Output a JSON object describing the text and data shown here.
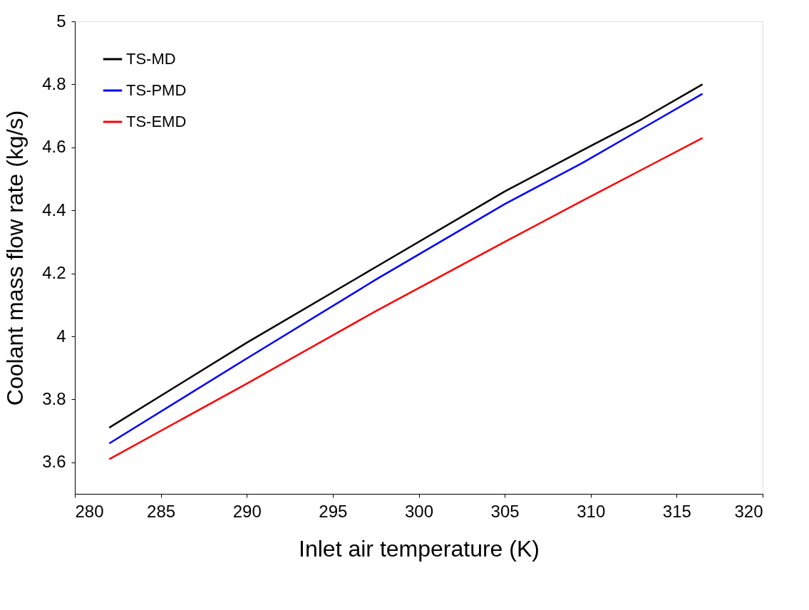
{
  "chart_data": {
    "type": "line",
    "xlabel": "Inlet air temperature (K)",
    "ylabel": "Coolant mass flow rate (kg/s)",
    "x": [
      282,
      290,
      297.5,
      305,
      309.5,
      313,
      316.5
    ],
    "series": [
      {
        "name": "TS-MD",
        "color": "#000000",
        "values": [
          3.71,
          3.98,
          4.22,
          4.46,
          4.59,
          4.69,
          4.8
        ]
      },
      {
        "name": "TS-PMD",
        "color": "#0000ff",
        "values": [
          3.66,
          3.93,
          4.18,
          4.42,
          4.55,
          4.66,
          4.77
        ]
      },
      {
        "name": "TS-EMD",
        "color": "#ff0000",
        "values": [
          3.61,
          3.85,
          4.08,
          4.3,
          4.43,
          4.53,
          4.63
        ]
      }
    ],
    "xlim": [
      280,
      320
    ],
    "xticks": [
      280,
      285,
      290,
      295,
      300,
      305,
      310,
      315,
      320
    ],
    "ylim": [
      3.5,
      5
    ],
    "yticks": [
      3.6,
      3.8,
      4,
      4.2,
      4.4,
      4.6,
      4.8,
      5
    ],
    "grid": false,
    "legend": "top left",
    "marker": "none",
    "line_style": "solid"
  }
}
